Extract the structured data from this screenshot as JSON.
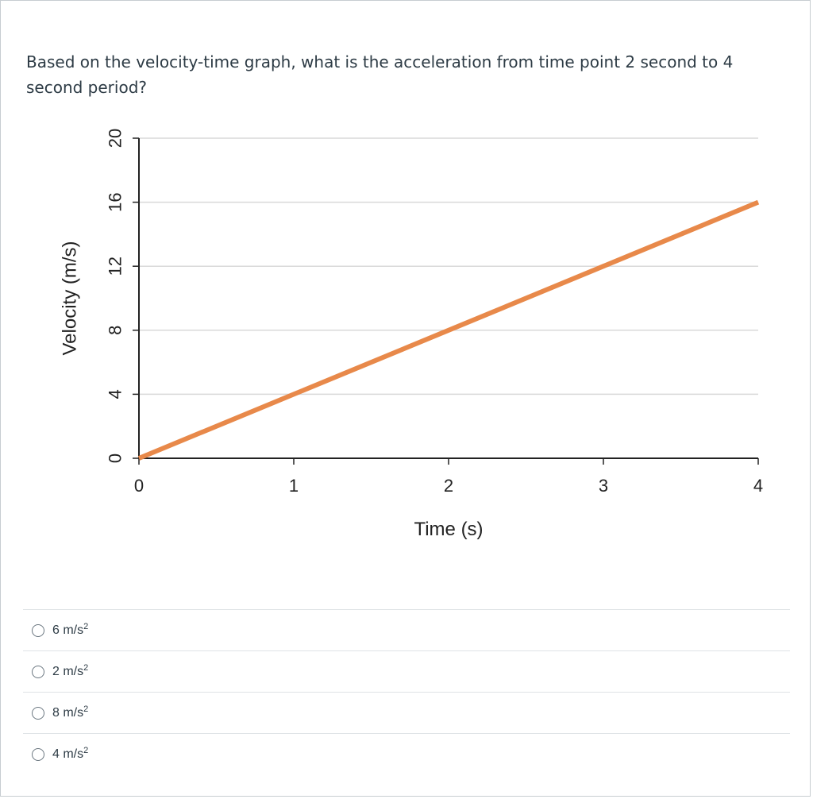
{
  "question": {
    "text": "Based on the velocity-time graph, what is the acceleration from time point 2 second to 4 second period?"
  },
  "answers": [
    {
      "value": "6 m/s",
      "exponent": "2"
    },
    {
      "value": "2 m/s",
      "exponent": "2"
    },
    {
      "value": "8 m/s",
      "exponent": "2"
    },
    {
      "value": "4 m/s",
      "exponent": "2"
    }
  ],
  "chart_data": {
    "type": "line",
    "title": "",
    "xlabel": "Time (s)",
    "ylabel": "Velocity (m/s)",
    "x": [
      0,
      1,
      2,
      3,
      4
    ],
    "series": [
      {
        "values": [
          0,
          4,
          8,
          12,
          16
        ],
        "color": "#e8894a"
      }
    ],
    "xticks": [
      "0",
      "1",
      "2",
      "3",
      "4"
    ],
    "yticks": [
      "0",
      "4",
      "8",
      "12",
      "16",
      "20"
    ],
    "xlim": [
      0,
      4
    ],
    "ylim": [
      0,
      20
    ],
    "grid": true
  }
}
